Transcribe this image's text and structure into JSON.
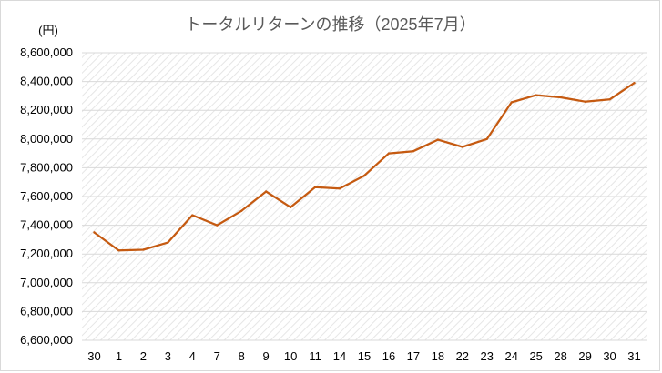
{
  "chart_data": {
    "type": "line",
    "title": "トータルリターンの推移（2025年7月）",
    "y_unit": "(円)",
    "categories": [
      "30",
      "1",
      "2",
      "3",
      "4",
      "7",
      "8",
      "9",
      "10",
      "11",
      "14",
      "15",
      "16",
      "17",
      "18",
      "22",
      "23",
      "24",
      "25",
      "28",
      "29",
      "30",
      "31"
    ],
    "series": [
      {
        "values": [
          7350000,
          7225000,
          7230000,
          7280000,
          7470000,
          7400000,
          7500000,
          7635000,
          7525000,
          7665000,
          7655000,
          7745000,
          7900000,
          7915000,
          7995000,
          7945000,
          8000000,
          8255000,
          8305000,
          8290000,
          8260000,
          8275000,
          8390000
        ],
        "color": "#c55a11"
      }
    ],
    "ylim": [
      6600000,
      8600000
    ],
    "ytick_step": 200000,
    "ytick_labels": [
      "6,600,000",
      "6,800,000",
      "7,000,000",
      "7,200,000",
      "7,400,000",
      "7,600,000",
      "7,800,000",
      "8,000,000",
      "8,200,000",
      "8,400,000",
      "8,600,000"
    ],
    "grid": true,
    "legend": "none"
  }
}
